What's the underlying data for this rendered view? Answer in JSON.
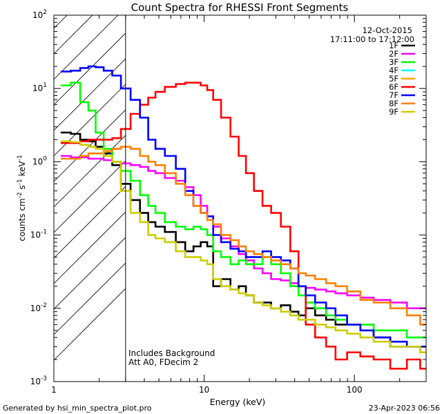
{
  "chart_data": {
    "type": "line",
    "title": "Count Spectra for RHESSI Front Segments",
    "xlabel": "Energy (keV)",
    "ylabel_parts": [
      "counts cm",
      "-2",
      " s",
      "-1",
      " keV",
      "-1"
    ],
    "xscale": "log",
    "yscale": "log",
    "xlim": [
      1,
      300
    ],
    "ylim": [
      0.001,
      100
    ],
    "x_ticks": [
      {
        "v": 1,
        "label": "1"
      },
      {
        "v": 10,
        "label": "10"
      },
      {
        "v": 100,
        "label": "100"
      }
    ],
    "y_ticks": [
      {
        "v": 0.001,
        "m": "10",
        "e": "-3"
      },
      {
        "v": 0.01,
        "m": "10",
        "e": "-2"
      },
      {
        "v": 0.1,
        "m": "10",
        "e": "-1"
      },
      {
        "v": 1,
        "m": "10",
        "e": "0"
      },
      {
        "v": 10,
        "m": "10",
        "e": "1"
      },
      {
        "v": 100,
        "m": "10",
        "e": "2"
      }
    ],
    "hatched_region": [
      1,
      3
    ],
    "date": "12-Oct-2015",
    "time_range": "17:11:00 to 17:12:00",
    "annotations": [
      "Includes Background",
      "Att A0, FDecim 2"
    ],
    "energies": [
      1.2,
      1.4,
      1.6,
      1.8,
      2.0,
      2.3,
      2.6,
      3.0,
      3.5,
      4.0,
      4.5,
      5.0,
      6.0,
      7.0,
      8.0,
      9.0,
      10,
      11,
      12,
      14,
      16,
      18,
      20,
      23,
      26,
      30,
      35,
      40,
      45,
      50,
      60,
      70,
      80,
      100,
      120,
      150,
      200,
      250,
      300
    ],
    "series": [
      {
        "name": "1F",
        "color": "#000000",
        "values": [
          2.5,
          2.4,
          2.0,
          1.9,
          1.6,
          1.3,
          0.9,
          0.5,
          0.3,
          0.2,
          0.15,
          0.13,
          0.11,
          0.08,
          0.06,
          0.07,
          0.08,
          0.07,
          0.02,
          0.025,
          0.018,
          0.02,
          0.015,
          0.012,
          0.012,
          0.01,
          0.011,
          0.009,
          0.008,
          0.01,
          0.008,
          0.007,
          0.006,
          0.006,
          0.005,
          0.004,
          0.003,
          0.003,
          0.003
        ]
      },
      {
        "name": "2F",
        "color": "#ff00ff",
        "values": [
          1.2,
          1.15,
          1.15,
          1.1,
          1.1,
          1.05,
          1.0,
          0.95,
          0.9,
          0.85,
          0.75,
          0.7,
          0.6,
          0.55,
          0.45,
          0.35,
          0.25,
          0.18,
          0.13,
          0.09,
          0.07,
          0.055,
          0.045,
          0.035,
          0.03,
          0.025,
          0.024,
          0.022,
          0.02,
          0.019,
          0.018,
          0.017,
          0.016,
          0.015,
          0.014,
          0.013,
          0.012,
          0.01,
          0.01
        ]
      },
      {
        "name": "3F",
        "color": "#00ff00",
        "values": [
          11,
          12,
          6.5,
          5.0,
          2.5,
          1.5,
          1.0,
          0.75,
          0.55,
          0.35,
          0.25,
          0.2,
          0.15,
          0.13,
          0.12,
          0.13,
          0.12,
          0.1,
          0.06,
          0.05,
          0.04,
          0.045,
          0.04,
          0.04,
          0.05,
          0.04,
          0.03,
          0.02,
          0.015,
          0.012,
          0.01,
          0.008,
          0.007,
          0.006,
          0.006,
          0.005,
          0.005,
          0.004,
          0.004
        ]
      },
      {
        "name": "4F",
        "color": "#00ffff",
        "values": []
      },
      {
        "name": "5F",
        "color": "#ffa500",
        "values": []
      },
      {
        "name": "6F",
        "color": "#ff0000",
        "values": [
          1.8,
          1.8,
          1.9,
          2.0,
          2.0,
          2.0,
          2.1,
          2.8,
          4.5,
          6.0,
          7.5,
          9.0,
          10.5,
          11.5,
          12.0,
          12.0,
          11.0,
          9.5,
          7.0,
          4.0,
          2.2,
          1.2,
          0.7,
          0.4,
          0.25,
          0.2,
          0.13,
          0.06,
          0.02,
          0.006,
          0.004,
          0.003,
          0.002,
          0.0025,
          0.0022,
          0.002,
          0.0015,
          0.002,
          0.0015
        ]
      },
      {
        "name": "7F",
        "color": "#0000ff",
        "values": [
          17,
          17.5,
          19,
          20,
          19.5,
          17.5,
          15,
          10,
          7.0,
          4.0,
          2.0,
          1.5,
          1.2,
          0.8,
          0.4,
          0.25,
          0.2,
          0.18,
          0.1,
          0.08,
          0.065,
          0.06,
          0.05,
          0.05,
          0.06,
          0.05,
          0.045,
          0.035,
          0.02,
          0.015,
          0.012,
          0.01,
          0.008,
          0.006,
          0.005,
          0.004,
          0.0035,
          0.003,
          0.003
        ]
      },
      {
        "name": "8F",
        "color": "#ff8000",
        "values": [
          1.1,
          1.1,
          1.2,
          1.3,
          1.3,
          1.4,
          1.5,
          1.6,
          1.5,
          1.2,
          1.0,
          0.9,
          0.7,
          0.5,
          0.35,
          0.25,
          0.2,
          0.16,
          0.14,
          0.1,
          0.085,
          0.07,
          0.06,
          0.055,
          0.05,
          0.045,
          0.04,
          0.035,
          0.03,
          0.028,
          0.025,
          0.022,
          0.02,
          0.017,
          0.013,
          0.012,
          0.01,
          0.008,
          0.006
        ]
      },
      {
        "name": "9F",
        "color": "#cccc00",
        "values": [
          1.9,
          1.85,
          1.7,
          1.6,
          1.5,
          1.2,
          1.0,
          0.4,
          0.2,
          0.15,
          0.1,
          0.09,
          0.08,
          0.06,
          0.05,
          0.05,
          0.045,
          0.04,
          0.025,
          0.02,
          0.018,
          0.016,
          0.015,
          0.012,
          0.011,
          0.01,
          0.009,
          0.008,
          0.007,
          0.007,
          0.006,
          0.0055,
          0.005,
          0.0045,
          0.004,
          0.0035,
          0.003,
          0.003,
          0.0025
        ]
      }
    ]
  },
  "footer": {
    "generated_by": "Generated by hsi_min_spectra_plot.pro",
    "timestamp": "23-Apr-2023 06:56"
  }
}
